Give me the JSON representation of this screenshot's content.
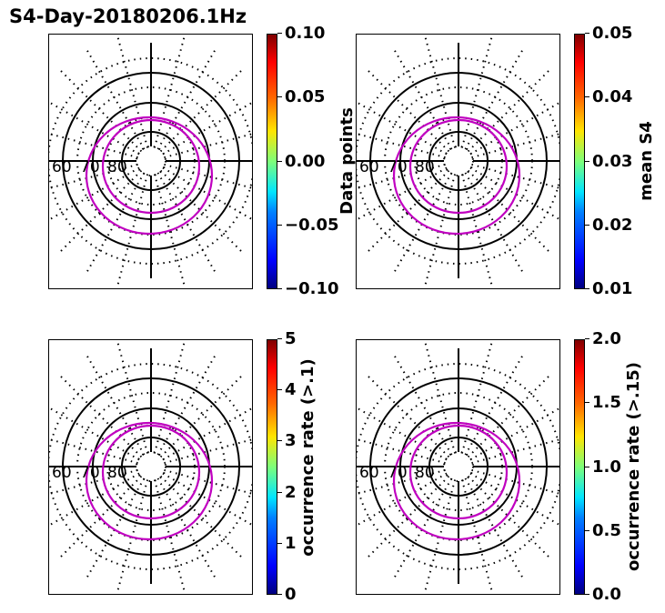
{
  "title": "S4-Day-20180206.1Hz",
  "chart_data": [
    {
      "type": "polar",
      "name": "panel-1",
      "colorbar": {
        "ticks": [
          "0.10",
          "0.05",
          "0.00",
          "−0.05",
          "−0.10"
        ],
        "range": [
          -0.1,
          0.1
        ],
        "label": ""
      },
      "lat_labels": [
        "60",
        "70",
        "80"
      ]
    },
    {
      "type": "polar",
      "name": "panel-2",
      "colorbar": {
        "ticks": [
          "0.05",
          "0.04",
          "0.03",
          "0.02",
          "0.01"
        ],
        "range": [
          0.01,
          0.05
        ],
        "label": "mean S4"
      },
      "side_label": "Data points",
      "lat_labels": [
        "60",
        "70",
        "80"
      ]
    },
    {
      "type": "polar",
      "name": "panel-3",
      "colorbar": {
        "ticks": [
          "5",
          "4",
          "3",
          "2",
          "1",
          "0"
        ],
        "range": [
          0,
          5
        ],
        "label": "occurrence rate (>.1)"
      },
      "lat_labels": [
        "60",
        "70",
        "80"
      ]
    },
    {
      "type": "polar",
      "name": "panel-4",
      "colorbar": {
        "ticks": [
          "2.0",
          "1.5",
          "1.0",
          "0.5",
          "0.0"
        ],
        "range": [
          0,
          2
        ],
        "label": "occurrence rate (>.15)"
      },
      "lat_labels": [
        "60",
        "70",
        "80"
      ]
    }
  ],
  "colors": {
    "oval": "#c000c0",
    "grid": "#000000"
  }
}
